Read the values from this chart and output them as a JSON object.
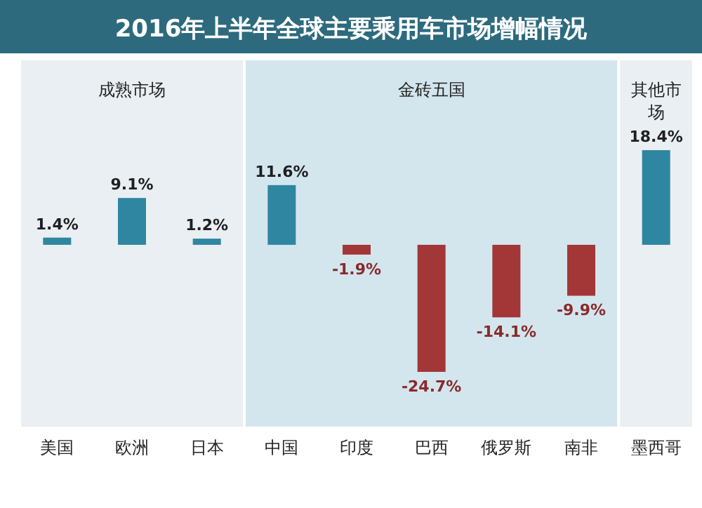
{
  "chart_data": {
    "type": "bar",
    "title": "2016年上半年全球主要乘用车市场增幅情况",
    "categories": [
      "美国",
      "欧洲",
      "日本",
      "中国",
      "印度",
      "巴西",
      "俄罗斯",
      "南非",
      "墨西哥"
    ],
    "values": [
      1.4,
      9.1,
      1.2,
      11.6,
      -1.9,
      -24.7,
      -14.1,
      -9.9,
      18.4
    ],
    "colors": [
      "#2f86a0",
      "#2f86a0",
      "#2f86a0",
      "#2f86a0",
      "#a33636",
      "#a33636",
      "#a33636",
      "#a33636",
      "#2f86a0"
    ],
    "value_labels": [
      "1.4%",
      "9.1%",
      "1.2%",
      "11.6%",
      "-1.9%",
      "-24.7%",
      "-14.1%",
      "-9.9%",
      "18.4%"
    ],
    "bands": [
      {
        "axis": "x",
        "from": "美国",
        "to": "日本",
        "label": "成熟市场",
        "color": "#e9eff3"
      },
      {
        "axis": "x",
        "from": "中国",
        "to": "南非",
        "label": "金砖五国",
        "color": "#d3e6ee"
      },
      {
        "axis": "x",
        "from": "墨西哥",
        "to": "墨西哥",
        "label": "其他市场",
        "color": "#e9eff3"
      }
    ]
  }
}
